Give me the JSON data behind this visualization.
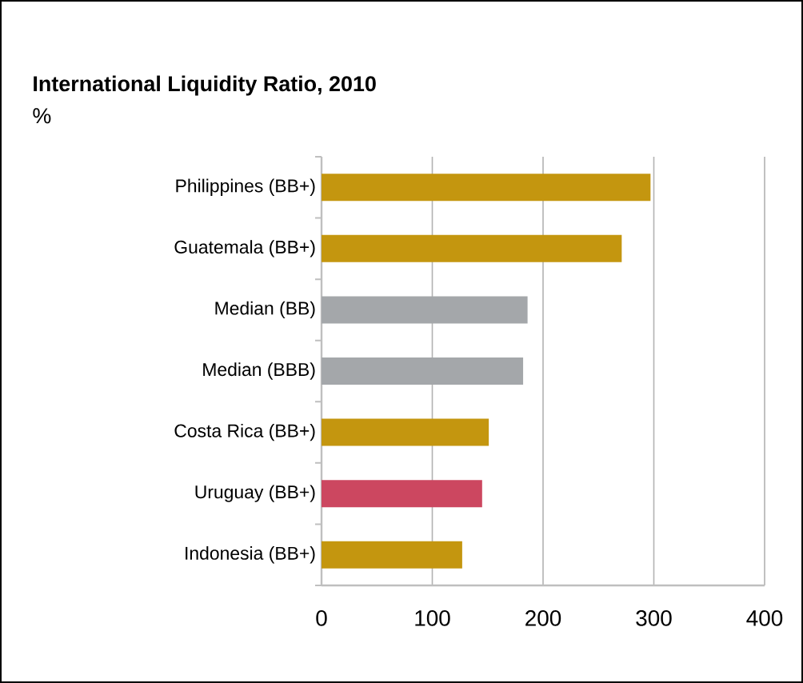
{
  "chart_data": {
    "type": "bar",
    "orientation": "horizontal",
    "title": "International Liquidity Ratio, 2010",
    "subtitle": "%",
    "categories": [
      "Philippines (BB+)",
      "Guatemala (BB+)",
      "Median (BB)",
      "Median (BBB)",
      "Costa Rica (BB+)",
      "Uruguay (BB+)",
      "Indonesia (BB+)"
    ],
    "values": [
      297,
      271,
      186,
      182,
      151,
      145,
      127
    ],
    "colors": [
      "#c4960f",
      "#c4960f",
      "#a4a7aa",
      "#a4a7aa",
      "#c4960f",
      "#cc4760",
      "#c4960f"
    ],
    "xlim": [
      0,
      400
    ],
    "xticks": [
      0,
      100,
      200,
      300,
      400
    ],
    "grid": "x"
  }
}
